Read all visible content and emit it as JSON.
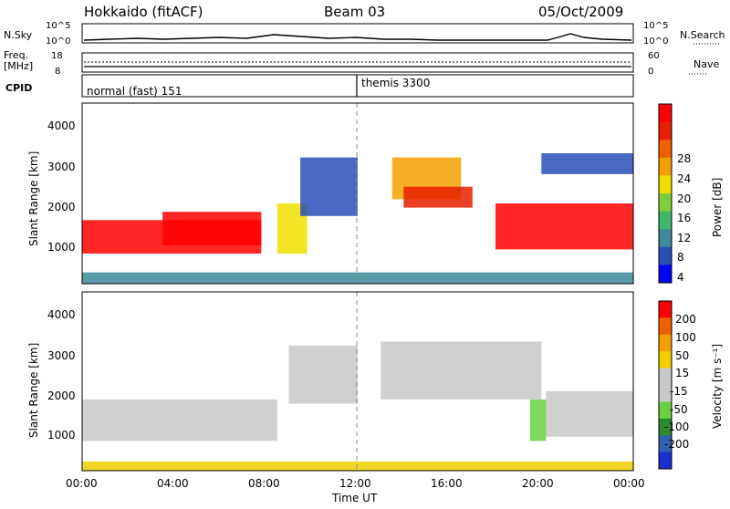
{
  "header": {
    "station": "Hokkaido (fitACF)",
    "beam": "Beam 03",
    "date": "05/Oct/2009"
  },
  "strip_panels": {
    "nsky": {
      "label": "N.Sky",
      "ticks": [
        "10^5",
        "10^0"
      ],
      "right_label": "N.Search",
      "right_ticks": [
        "10^5",
        "10^0"
      ]
    },
    "freq": {
      "label_line1": "Freq.",
      "label_line2": "[MHz]",
      "ticks": [
        "18",
        "8"
      ],
      "right_label": "Nave",
      "right_ticks": [
        "60",
        "0"
      ]
    },
    "cpid": {
      "label": "CPID",
      "modes": [
        {
          "name": "normal (fast) 151",
          "start_hour": 0
        },
        {
          "name": "themis 3300",
          "start_hour": 12
        }
      ]
    }
  },
  "colors": {
    "power_scale": [
      "#0000ff",
      "#2a4fb8",
      "#3c8a9a",
      "#3fb86c",
      "#7fcf3c",
      "#f0e000",
      "#f5a000",
      "#f06000",
      "#e62000",
      "#ff0000"
    ],
    "velocity_scale": [
      "#1a2fd0",
      "#3060b0",
      "#2e8a2e",
      "#6ad040",
      "#c8c8c8",
      "#c8c8c8",
      "#f0d000",
      "#f5a000",
      "#f06000",
      "#ff0000"
    ]
  },
  "chart_data": [
    {
      "type": "heatmap",
      "name": "power",
      "ylabel": "Slant Range [km]",
      "ylim": [
        180,
        4500
      ],
      "yticks": [
        "1000",
        "2000",
        "3000",
        "4000"
      ],
      "xlim": [
        0,
        24
      ],
      "colorbar": {
        "label": "Power [dB]",
        "ticks": [
          "28",
          "24",
          "20",
          "16",
          "12",
          "8",
          "4"
        ]
      },
      "regions": [
        {
          "t0": 0.0,
          "t1": 7.8,
          "r0": 900,
          "r1": 1700,
          "level": 9
        },
        {
          "t0": 3.5,
          "t1": 7.8,
          "r0": 1100,
          "r1": 1900,
          "level": 9
        },
        {
          "t0": 8.5,
          "t1": 9.8,
          "r0": 900,
          "r1": 2100,
          "level": 5
        },
        {
          "t0": 9.5,
          "t1": 12.0,
          "r0": 1800,
          "r1": 3200,
          "level": 1
        },
        {
          "t0": 13.5,
          "t1": 16.5,
          "r0": 2200,
          "r1": 3200,
          "level": 6
        },
        {
          "t0": 14.0,
          "t1": 17.0,
          "r0": 2000,
          "r1": 2500,
          "level": 8
        },
        {
          "t0": 18.0,
          "t1": 24.0,
          "r0": 1000,
          "r1": 2100,
          "level": 9
        },
        {
          "t0": 20.0,
          "t1": 24.0,
          "r0": 2800,
          "r1": 3300,
          "level": 1
        },
        {
          "t0": 0.0,
          "t1": 24.0,
          "r0": 180,
          "r1": 450,
          "level": 2
        }
      ]
    },
    {
      "type": "heatmap",
      "name": "velocity",
      "ylabel": "Slant Range [km]",
      "ylim": [
        180,
        4500
      ],
      "yticks": [
        "1000",
        "2000",
        "3000",
        "4000"
      ],
      "xlim": [
        0,
        24
      ],
      "xticks": [
        "00:00",
        "04:00",
        "08:00",
        "12:00",
        "16:00",
        "20:00",
        "00:00"
      ],
      "xlabel": "Time UT",
      "colorbar": {
        "label": "Velocity [m s⁻¹]",
        "ticks": [
          "200",
          "100",
          "50",
          "15",
          "-15",
          "-50",
          "-100",
          "-200"
        ]
      },
      "regions": [
        {
          "t0": 0.0,
          "t1": 8.5,
          "r0": 900,
          "r1": 1900,
          "level": 4
        },
        {
          "t0": 9.0,
          "t1": 12.0,
          "r0": 1800,
          "r1": 3200,
          "level": 4
        },
        {
          "t0": 13.0,
          "t1": 20.0,
          "r0": 1900,
          "r1": 3300,
          "level": 4
        },
        {
          "t0": 19.5,
          "t1": 20.2,
          "r0": 900,
          "r1": 1900,
          "level": 3
        },
        {
          "t0": 20.2,
          "t1": 24.0,
          "r0": 1000,
          "r1": 2100,
          "level": 4
        },
        {
          "t0": 0.0,
          "t1": 24.0,
          "r0": 180,
          "r1": 400,
          "level": 6
        }
      ]
    }
  ]
}
